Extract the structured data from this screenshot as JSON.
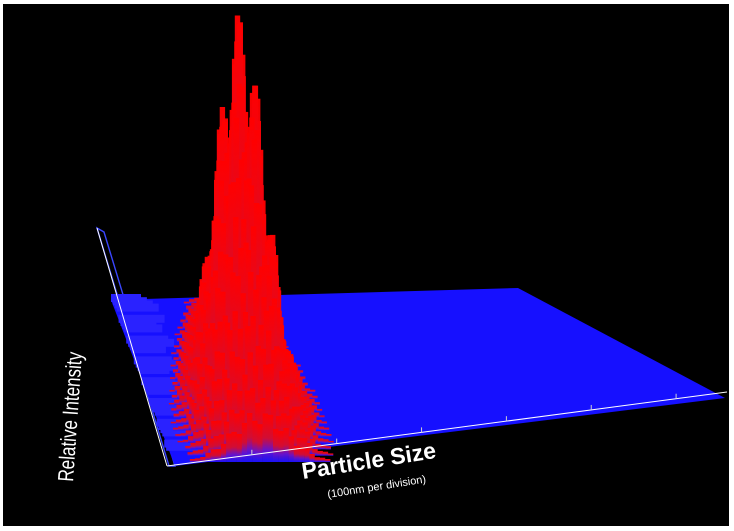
{
  "chart_data": {
    "type": "surface-3d",
    "xlabel": "Particle Size",
    "xlabel_sub": "(100nm per division)",
    "ylabel": "Relative Intensity",
    "x_divisions": 6,
    "peak": {
      "x_division": 1.2,
      "y_division": 0.55,
      "relative_height": 1.0
    },
    "z_range": [
      0,
      1
    ],
    "colors": {
      "background": "#000000",
      "surface_low": "#1a12ff",
      "surface_high": "#ff0000",
      "axis": "#ffffff",
      "back_wall": "#3a46ff"
    },
    "grid": false,
    "legend": "none"
  }
}
